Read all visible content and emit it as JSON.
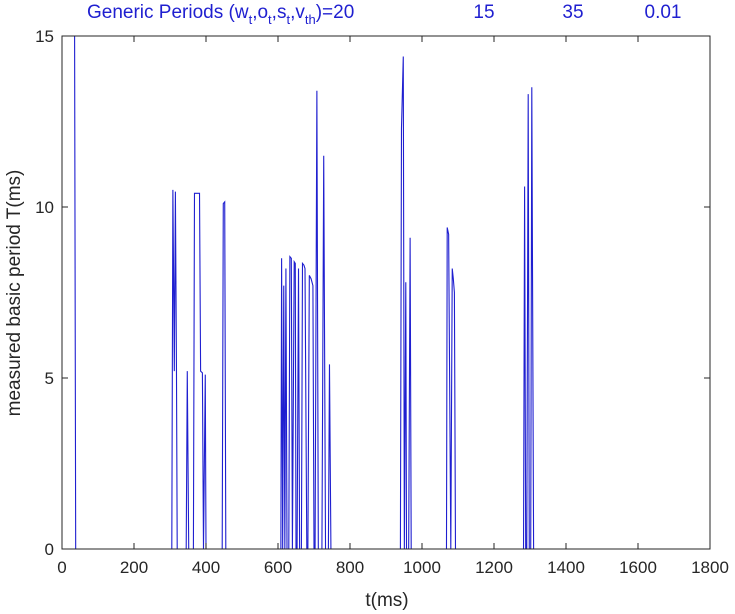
{
  "chart_data": {
    "type": "line",
    "title": {
      "prefix": "Generic Periods (w",
      "sub_w": "t",
      "sep1": ",o",
      "sub_o": "t",
      "sep2": ",s",
      "sub_s": "t",
      "sep3": ",v",
      "sub_v": "th",
      "suffix": ")=20",
      "values": [
        "15",
        "35",
        "0.01"
      ]
    },
    "xlabel": "t(ms)",
    "ylabel": "measured basic period T(ms)",
    "xlim": [
      0,
      1800
    ],
    "ylim": [
      0,
      15
    ],
    "xticks": [
      0,
      200,
      400,
      600,
      800,
      1000,
      1200,
      1400,
      1600,
      1800
    ],
    "yticks": [
      0,
      5,
      10,
      15
    ],
    "grid": false,
    "line_color": "#1f1fd0",
    "axis_color": "#262626",
    "series": [
      {
        "x": [
          0,
          35,
          38,
          42,
          305,
          308,
          312,
          315,
          318,
          320,
          345,
          348,
          352,
          365,
          368,
          372,
          382,
          385,
          390,
          393,
          398,
          400,
          445,
          448,
          452,
          455,
          458,
          460,
          608,
          610,
          613,
          616,
          619,
          622,
          625,
          630,
          633,
          637,
          640,
          645,
          648,
          650,
          653,
          657,
          660,
          665,
          668,
          672,
          675,
          680,
          683,
          687,
          692,
          697,
          700,
          703,
          708,
          712,
          718,
          722,
          727,
          732,
          740,
          743,
          747,
          762,
          765,
          768,
          772,
          778,
          782,
          785,
          940,
          943,
          948,
          951,
          955,
          957,
          960,
          963,
          967,
          970,
          990,
          993,
          997,
          1000,
          1068,
          1070,
          1074,
          1080,
          1084,
          1087,
          1090,
          1093,
          1097,
          1100,
          1104,
          1106,
          1282,
          1285,
          1288,
          1291,
          1295,
          1298,
          1302,
          1305,
          1310,
          1313,
          1317,
          1320,
          1600
        ],
        "y": [
          15,
          15,
          0,
          0,
          0,
          10.5,
          5.2,
          10.45,
          5.2,
          0,
          0,
          5.2,
          0,
          0,
          10.4,
          10.4,
          10.4,
          5.2,
          5.15,
          0,
          5.1,
          0,
          0,
          10.1,
          10.15,
          0,
          0,
          0,
          0,
          8.5,
          0,
          7.7,
          0,
          8.2,
          0,
          0,
          8.55,
          8.5,
          0,
          8.4,
          8.35,
          0,
          0,
          8.2,
          0,
          0,
          8.35,
          8.3,
          8.2,
          0,
          0,
          8,
          7.9,
          7.7,
          0,
          0,
          13.4,
          0,
          0,
          0,
          11.5,
          0,
          0,
          5.4,
          0,
          0,
          0,
          0,
          0,
          0,
          0,
          0,
          0,
          12.3,
          14.4,
          0,
          7.8,
          0,
          0,
          0,
          9.1,
          0,
          0,
          0,
          0,
          0,
          0,
          9.4,
          9.2,
          0,
          8.2,
          7.9,
          7.5,
          0,
          0,
          0,
          0,
          0,
          0,
          10.6,
          0,
          0,
          13.3,
          0,
          0,
          13.5,
          0,
          0,
          0,
          0,
          0
        ]
      }
    ]
  }
}
